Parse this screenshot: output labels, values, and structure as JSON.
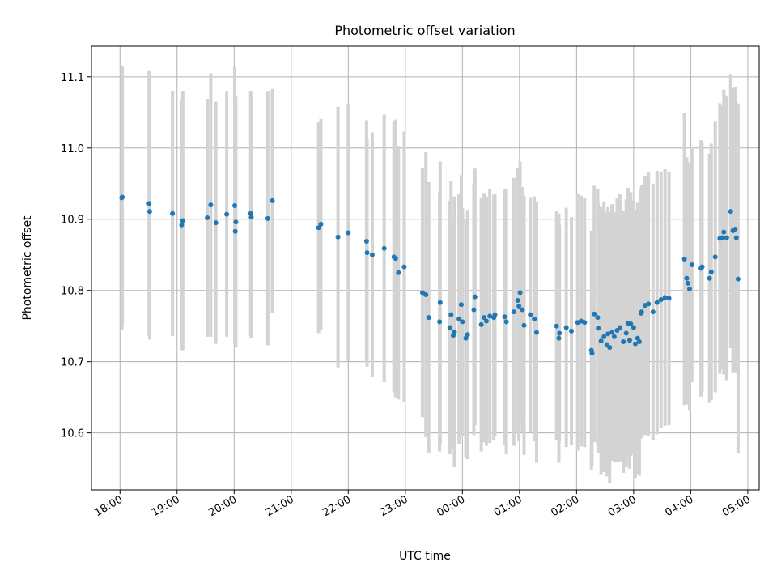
{
  "chart_data": {
    "type": "scatter",
    "title": "Photometric offset variation",
    "xlabel": "UTC time",
    "ylabel": "Photometric offset",
    "xlim": [
      -0.5,
      11.2
    ],
    "ylim": [
      10.52,
      11.143
    ],
    "x_unit": "hours from 18:00 UTC",
    "x_ticks": [
      {
        "value": 0,
        "label": "18:00"
      },
      {
        "value": 1,
        "label": "19:00"
      },
      {
        "value": 2,
        "label": "20:00"
      },
      {
        "value": 3,
        "label": "21:00"
      },
      {
        "value": 4,
        "label": "22:00"
      },
      {
        "value": 5,
        "label": "23:00"
      },
      {
        "value": 6,
        "label": "00:00"
      },
      {
        "value": 7,
        "label": "01:00"
      },
      {
        "value": 8,
        "label": "02:00"
      },
      {
        "value": 9,
        "label": "03:00"
      },
      {
        "value": 10,
        "label": "04:00"
      },
      {
        "value": 11,
        "label": "05:00"
      }
    ],
    "y_ticks": [
      {
        "value": 10.6,
        "label": "10.6"
      },
      {
        "value": 10.7,
        "label": "10.7"
      },
      {
        "value": 10.8,
        "label": "10.8"
      },
      {
        "value": 10.9,
        "label": "10.9"
      },
      {
        "value": 11.0,
        "label": "11.0"
      },
      {
        "value": 11.1,
        "label": "11.1"
      }
    ],
    "grid": true,
    "series": [
      {
        "marker_color": "#1f77b4",
        "errorbar_color": "#d3d3d3",
        "points": [
          [
            0.03,
            10.93,
            0.185
          ],
          [
            0.04,
            10.931,
            0.182
          ],
          [
            0.51,
            10.922,
            0.186
          ],
          [
            0.52,
            10.911,
            0.18
          ],
          [
            0.92,
            10.908,
            0.172
          ],
          [
            1.08,
            10.892,
            0.175
          ],
          [
            1.1,
            10.898,
            0.182
          ],
          [
            1.53,
            10.902,
            0.167
          ],
          [
            1.59,
            10.92,
            0.185
          ],
          [
            1.68,
            10.895,
            0.17
          ],
          [
            1.87,
            10.907,
            0.172
          ],
          [
            2.01,
            10.919,
            0.195
          ],
          [
            2.02,
            10.883,
            0.16
          ],
          [
            2.03,
            10.896,
            0.176
          ],
          [
            2.29,
            10.908,
            0.172
          ],
          [
            2.3,
            10.903,
            0.17
          ],
          [
            2.59,
            10.901,
            0.178
          ],
          [
            2.67,
            10.926,
            0.157
          ],
          [
            3.48,
            10.888,
            0.148
          ],
          [
            3.52,
            10.893,
            0.148
          ],
          [
            4.0,
            10.881,
            0.18
          ],
          [
            3.82,
            10.875,
            0.183
          ],
          [
            4.32,
            10.869,
            0.17
          ],
          [
            4.33,
            10.853,
            0.16
          ],
          [
            4.42,
            10.85,
            0.172
          ],
          [
            4.63,
            10.859,
            0.188
          ],
          [
            4.8,
            10.847,
            0.19
          ],
          [
            4.83,
            10.845,
            0.195
          ],
          [
            4.88,
            10.825,
            0.178
          ],
          [
            4.98,
            10.833,
            0.19
          ],
          [
            5.3,
            10.797,
            0.175
          ],
          [
            5.36,
            10.794,
            0.2
          ],
          [
            5.41,
            10.762,
            0.19
          ],
          [
            5.61,
            10.783,
            0.198
          ],
          [
            5.6,
            10.756,
            0.182
          ],
          [
            5.78,
            10.748,
            0.178
          ],
          [
            5.86,
            10.742,
            0.19
          ],
          [
            5.8,
            10.766,
            0.188
          ],
          [
            5.84,
            10.737,
            0.16
          ],
          [
            5.94,
            10.76,
            0.175
          ],
          [
            5.98,
            10.78,
            0.182
          ],
          [
            6.0,
            10.756,
            0.16
          ],
          [
            6.06,
            10.733,
            0.168
          ],
          [
            6.09,
            10.738,
            0.175
          ],
          [
            6.2,
            10.773,
            0.176
          ],
          [
            6.22,
            10.791,
            0.18
          ],
          [
            6.33,
            10.752,
            0.178
          ],
          [
            6.38,
            10.762,
            0.175
          ],
          [
            6.42,
            10.757,
            0.175
          ],
          [
            6.48,
            10.764,
            0.178
          ],
          [
            6.55,
            10.762,
            0.172
          ],
          [
            6.57,
            10.766,
            0.17
          ],
          [
            6.74,
            10.763,
            0.18
          ],
          [
            6.77,
            10.756,
            0.186
          ],
          [
            6.9,
            10.77,
            0.188
          ],
          [
            6.97,
            10.786,
            0.185
          ],
          [
            6.99,
            10.778,
            0.19
          ],
          [
            7.01,
            10.797,
            0.184
          ],
          [
            7.05,
            10.773,
            0.172
          ],
          [
            7.08,
            10.751,
            0.182
          ],
          [
            7.19,
            10.766,
            0.165
          ],
          [
            7.26,
            10.76,
            0.172
          ],
          [
            7.3,
            10.741,
            0.183
          ],
          [
            7.65,
            10.75,
            0.161
          ],
          [
            7.7,
            10.74,
            0.152
          ],
          [
            7.69,
            10.733,
            0.175
          ],
          [
            7.82,
            10.748,
            0.168
          ],
          [
            7.91,
            10.743,
            0.16
          ],
          [
            8.02,
            10.755,
            0.18
          ],
          [
            8.08,
            10.757,
            0.176
          ],
          [
            8.14,
            10.755,
            0.175
          ],
          [
            8.26,
            10.716,
            0.168
          ],
          [
            8.27,
            10.712,
            0.158
          ],
          [
            8.31,
            10.767,
            0.18
          ],
          [
            8.37,
            10.762,
            0.18
          ],
          [
            8.38,
            10.747,
            0.175
          ],
          [
            8.43,
            10.729,
            0.188
          ],
          [
            8.48,
            10.735,
            0.19
          ],
          [
            8.53,
            10.724,
            0.185
          ],
          [
            8.55,
            10.739,
            0.178
          ],
          [
            8.58,
            10.72,
            0.19
          ],
          [
            8.62,
            10.741,
            0.18
          ],
          [
            8.66,
            10.735,
            0.175
          ],
          [
            8.71,
            10.744,
            0.185
          ],
          [
            8.76,
            10.748,
            0.188
          ],
          [
            8.82,
            10.728,
            0.184
          ],
          [
            8.87,
            10.74,
            0.188
          ],
          [
            8.9,
            10.754,
            0.19
          ],
          [
            8.93,
            10.73,
            0.18
          ],
          [
            8.95,
            10.753,
            0.185
          ],
          [
            9.0,
            10.748,
            0.178
          ],
          [
            9.03,
            10.725,
            0.188
          ],
          [
            9.07,
            10.733,
            0.19
          ],
          [
            9.1,
            10.728,
            0.188
          ],
          [
            9.13,
            10.768,
            0.175
          ],
          [
            9.14,
            10.77,
            0.178
          ],
          [
            9.2,
            10.779,
            0.182
          ],
          [
            9.26,
            10.781,
            0.185
          ],
          [
            9.34,
            10.77,
            0.18
          ],
          [
            9.41,
            10.783,
            0.185
          ],
          [
            9.48,
            10.787,
            0.18
          ],
          [
            9.55,
            10.79,
            0.18
          ],
          [
            9.62,
            10.789,
            0.178
          ],
          [
            9.89,
            10.844,
            0.205
          ],
          [
            9.93,
            10.817,
            0.17
          ],
          [
            9.95,
            10.81,
            0.17
          ],
          [
            9.98,
            10.802,
            0.17
          ],
          [
            10.02,
            10.836,
            0.165
          ],
          [
            10.18,
            10.831,
            0.18
          ],
          [
            10.2,
            10.833,
            0.175
          ],
          [
            10.33,
            10.817,
            0.175
          ],
          [
            10.36,
            10.826,
            0.18
          ],
          [
            10.43,
            10.847,
            0.19
          ],
          [
            10.51,
            10.873,
            0.19
          ],
          [
            10.55,
            10.874,
            0.185
          ],
          [
            10.58,
            10.882,
            0.2
          ],
          [
            10.63,
            10.874,
            0.2
          ],
          [
            10.7,
            10.911,
            0.192
          ],
          [
            10.74,
            10.884,
            0.2
          ],
          [
            10.78,
            10.886,
            0.2
          ],
          [
            10.8,
            10.874,
            0.19
          ],
          [
            10.83,
            10.816,
            0.245
          ]
        ]
      }
    ]
  }
}
